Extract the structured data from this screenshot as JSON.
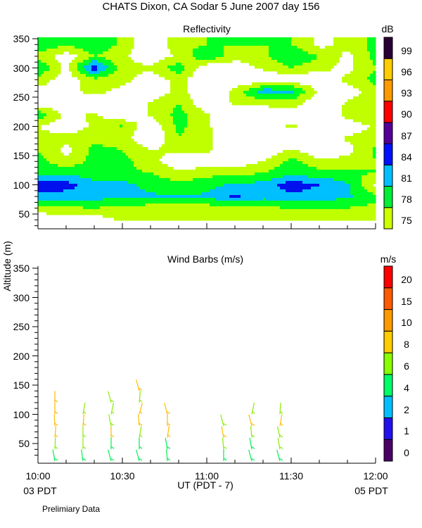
{
  "title": "CHATS Dixon, CA  Sodar   5 June 2007  day 156",
  "footer_note": "Prelimiary Data",
  "chart_data": [
    {
      "type": "heatmap",
      "title": "Reflectivity",
      "ylabel": "Altitude (m)",
      "xlabel": "UT  (PDT - 7)",
      "x_ticks": [
        "10:00",
        "10:30",
        "11:00",
        "11:30",
        "12:00"
      ],
      "x_sublabels": [
        "03 PDT",
        "05 PDT"
      ],
      "y_ticks": [
        "50",
        "100",
        "150",
        "200",
        "250",
        "300",
        "350"
      ],
      "ylim": [
        25,
        352
      ],
      "xlim_minutes": [
        0,
        120
      ],
      "colorbar": {
        "unit": "dB",
        "labels": [
          "75",
          "78",
          "81",
          "84",
          "87",
          "90",
          "93",
          "96",
          "99"
        ],
        "colors": [
          "#ccff00",
          "#00ee33",
          "#00bfff",
          "#0011ff",
          "#550099",
          "#ff0000",
          "#ff9900",
          "#ffcc00",
          "#2a0033"
        ]
      },
      "contour_levels": [
        75,
        78,
        81,
        84,
        87
      ],
      "contour_colors": [
        "#bfff00",
        "#00ff22",
        "#00bfff",
        "#0011ee",
        "#550099"
      ],
      "x_minutes": [
        0,
        10,
        20,
        30,
        40,
        50,
        60,
        70,
        80,
        90,
        100,
        110,
        120
      ],
      "altitudes": [
        20,
        40,
        60,
        80,
        100,
        120,
        140,
        160,
        180,
        200,
        220,
        240,
        260,
        280,
        300,
        320,
        340,
        360
      ],
      "values_db": [
        [
          70,
          70,
          70,
          70,
          70,
          70,
          70,
          70,
          70,
          70,
          70,
          70,
          70
        ],
        [
          72,
          73,
          73,
          75.5,
          75.5,
          75.5,
          75.5,
          75.5,
          75.5,
          75.5,
          75.5,
          75.5,
          75.5
        ],
        [
          77,
          77.5,
          78,
          77,
          76.5,
          76,
          76.5,
          77,
          77.5,
          78,
          78.5,
          78,
          77
        ],
        [
          83,
          82.5,
          82,
          82,
          81.5,
          81,
          81.5,
          84.5,
          82,
          83,
          82.5,
          81.5,
          79
        ],
        [
          86,
          85.5,
          82,
          82,
          80,
          79,
          80,
          81.5,
          82,
          86,
          84,
          81.5,
          74
        ],
        [
          80.5,
          80,
          79.5,
          79,
          78,
          75.5,
          77,
          77,
          78,
          80,
          79,
          78.5,
          78
        ],
        [
          79,
          76,
          79,
          79,
          76,
          73,
          73,
          73,
          75,
          79,
          76,
          76,
          78
        ],
        [
          78,
          74,
          79,
          78,
          75,
          75.5,
          75.5,
          72,
          72,
          75.5,
          72,
          74,
          78.5
        ],
        [
          76,
          76,
          77,
          76,
          72,
          78,
          76,
          72,
          72,
          72,
          72,
          75.5,
          76
        ],
        [
          75,
          73,
          75.5,
          78.5,
          72,
          79,
          75.5,
          72,
          72,
          76,
          72,
          73,
          75.5
        ],
        [
          80,
          74,
          75.5,
          72,
          75.5,
          79,
          75.5,
          72,
          72,
          72,
          72,
          76,
          78
        ],
        [
          73,
          72,
          72,
          72,
          75.5,
          78,
          72,
          75.5,
          76,
          77,
          72,
          75.5,
          77
        ],
        [
          73,
          74,
          76,
          74,
          72,
          76,
          72,
          76,
          83,
          82,
          74,
          73,
          77
        ],
        [
          77,
          73,
          77,
          76,
          73,
          76,
          72,
          72,
          72,
          73,
          72,
          76,
          79
        ],
        [
          81,
          74,
          86,
          76,
          75.5,
          80,
          72,
          73,
          75.5,
          78,
          76,
          74,
          78
        ],
        [
          77,
          73,
          78,
          75.5,
          73,
          75.5,
          81,
          76,
          77,
          81,
          78,
          74,
          79
        ],
        [
          81,
          78,
          81,
          77,
          72,
          77,
          78,
          78,
          78,
          78,
          74,
          76,
          79
        ],
        [
          81,
          78,
          81,
          77,
          72,
          77,
          78,
          78,
          78,
          78,
          74,
          76,
          79
        ]
      ]
    },
    {
      "type": "scatter",
      "title": "Wind Barbs (m/s)",
      "ylabel": "Altitude (m)",
      "xlabel": "UT  (PDT - 7)",
      "y_ticks": [
        "50",
        "100",
        "150",
        "200",
        "250",
        "300",
        "350"
      ],
      "ylim": [
        16,
        354
      ],
      "xlim_minutes": [
        0,
        120
      ],
      "colorbar": {
        "unit": "m/s",
        "labels": [
          "0",
          "1",
          "2",
          "4",
          "6",
          "8",
          "10",
          "15",
          "20"
        ],
        "colors": [
          "#4b0066",
          "#2211ee",
          "#00bfff",
          "#00ff66",
          "#88ff00",
          "#ffcc00",
          "#ff9900",
          "#ff5a00",
          "#ff0000"
        ]
      },
      "speed_colors": {
        "5": "#00ee55",
        "7": "#88ee00",
        "9": "#ffbb00"
      },
      "profiles": [
        {
          "time": "10:06",
          "minute": 6,
          "barbs": [
            [
              20,
              5,
              -10
            ],
            [
              40,
              7,
              3
            ],
            [
              60,
              9,
              5
            ],
            [
              80,
              9,
              -3
            ],
            [
              100,
              9,
              0
            ],
            [
              120,
              9,
              0
            ]
          ]
        },
        {
          "time": "10:16",
          "minute": 16,
          "barbs": [
            [
              20,
              5,
              -8
            ],
            [
              40,
              7,
              0
            ],
            [
              60,
              7,
              0
            ],
            [
              80,
              9,
              5
            ],
            [
              100,
              7,
              10
            ]
          ]
        },
        {
          "time": "10:26",
          "minute": 26,
          "barbs": [
            [
              20,
              5,
              -15
            ],
            [
              40,
              5,
              0
            ],
            [
              60,
              9,
              0
            ],
            [
              80,
              7,
              -12
            ],
            [
              100,
              7,
              12
            ],
            [
              120,
              7,
              -15
            ]
          ]
        },
        {
          "time": "10:36",
          "minute": 36,
          "barbs": [
            [
              20,
              5,
              -15
            ],
            [
              40,
              5,
              0
            ],
            [
              60,
              7,
              10
            ],
            [
              80,
              9,
              -5
            ],
            [
              100,
              9,
              15
            ],
            [
              120,
              7,
              5
            ],
            [
              140,
              9,
              -15
            ]
          ]
        },
        {
          "time": "10:46",
          "minute": 46,
          "barbs": [
            [
              20,
              5,
              -5
            ],
            [
              40,
              5,
              -10
            ],
            [
              60,
              9,
              8
            ],
            [
              80,
              9,
              0
            ],
            [
              100,
              9,
              -15
            ]
          ]
        },
        {
          "time": "11:06",
          "minute": 66,
          "barbs": [
            [
              20,
              5,
              0
            ],
            [
              40,
              7,
              -5
            ],
            [
              60,
              9,
              -10
            ],
            [
              80,
              7,
              -15
            ]
          ]
        },
        {
          "time": "11:16",
          "minute": 76,
          "barbs": [
            [
              20,
              5,
              -15
            ],
            [
              40,
              5,
              -10
            ],
            [
              60,
              7,
              -5
            ],
            [
              80,
              9,
              -15
            ],
            [
              100,
              7,
              12
            ]
          ]
        },
        {
          "time": "11:26",
          "minute": 86,
          "barbs": [
            [
              20,
              5,
              -15
            ],
            [
              40,
              7,
              -10
            ],
            [
              60,
              7,
              -12
            ],
            [
              80,
              9,
              10
            ],
            [
              100,
              7,
              3
            ]
          ]
        }
      ]
    }
  ]
}
